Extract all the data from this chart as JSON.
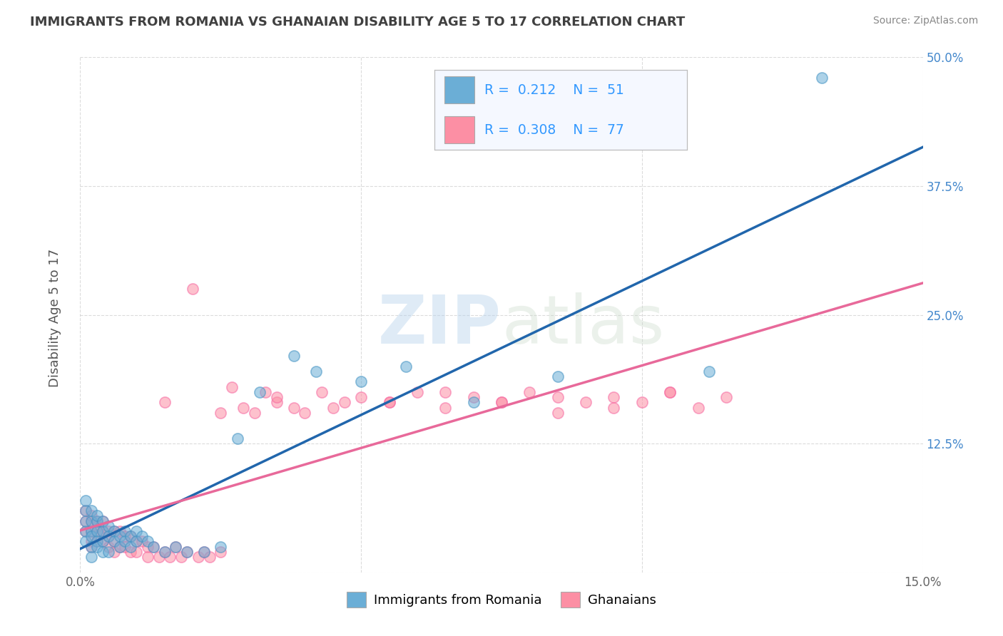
{
  "title": "IMMIGRANTS FROM ROMANIA VS GHANAIAN DISABILITY AGE 5 TO 17 CORRELATION CHART",
  "source": "Source: ZipAtlas.com",
  "ylabel": "Disability Age 5 to 17",
  "xlim": [
    0.0,
    0.15
  ],
  "ylim": [
    0.0,
    0.5
  ],
  "xticks": [
    0.0,
    0.05,
    0.1,
    0.15
  ],
  "xticklabels": [
    "0.0%",
    "",
    "",
    "15.0%"
  ],
  "yticks": [
    0.0,
    0.125,
    0.25,
    0.375,
    0.5
  ],
  "yticklabels": [
    "",
    "12.5%",
    "25.0%",
    "37.5%",
    "50.0%"
  ],
  "series1_color": "#6baed6",
  "series2_color": "#fc8fa4",
  "series1_edge": "#4393c3",
  "series2_edge": "#f768a1",
  "series1_label": "Immigrants from Romania",
  "series2_label": "Ghanaians",
  "series1_R": 0.212,
  "series1_N": 51,
  "series2_R": 0.308,
  "series2_N": 77,
  "trend1_color": "#2166ac",
  "trend2_color": "#e8699a",
  "legend_text_color": "#3399ff",
  "watermark": "ZIPatlas",
  "background_color": "#ffffff",
  "grid_color": "#cccccc",
  "title_color": "#404040",
  "series1_x": [
    0.001,
    0.001,
    0.001,
    0.001,
    0.001,
    0.002,
    0.002,
    0.002,
    0.002,
    0.002,
    0.002,
    0.003,
    0.003,
    0.003,
    0.003,
    0.003,
    0.004,
    0.004,
    0.004,
    0.004,
    0.005,
    0.005,
    0.005,
    0.006,
    0.006,
    0.007,
    0.007,
    0.008,
    0.008,
    0.009,
    0.009,
    0.01,
    0.01,
    0.011,
    0.012,
    0.013,
    0.015,
    0.017,
    0.019,
    0.022,
    0.025,
    0.028,
    0.032,
    0.038,
    0.042,
    0.05,
    0.058,
    0.07,
    0.085,
    0.112,
    0.132
  ],
  "series1_y": [
    0.04,
    0.05,
    0.06,
    0.07,
    0.03,
    0.04,
    0.05,
    0.035,
    0.025,
    0.015,
    0.06,
    0.04,
    0.05,
    0.055,
    0.03,
    0.025,
    0.04,
    0.05,
    0.03,
    0.02,
    0.045,
    0.035,
    0.02,
    0.04,
    0.03,
    0.035,
    0.025,
    0.04,
    0.03,
    0.035,
    0.025,
    0.04,
    0.03,
    0.035,
    0.03,
    0.025,
    0.02,
    0.025,
    0.02,
    0.02,
    0.025,
    0.13,
    0.175,
    0.21,
    0.195,
    0.185,
    0.2,
    0.165,
    0.19,
    0.195,
    0.48
  ],
  "series2_x": [
    0.001,
    0.001,
    0.001,
    0.002,
    0.002,
    0.002,
    0.002,
    0.002,
    0.003,
    0.003,
    0.003,
    0.003,
    0.004,
    0.004,
    0.004,
    0.005,
    0.005,
    0.005,
    0.006,
    0.006,
    0.006,
    0.007,
    0.007,
    0.008,
    0.008,
    0.009,
    0.009,
    0.01,
    0.01,
    0.011,
    0.012,
    0.012,
    0.013,
    0.014,
    0.015,
    0.016,
    0.017,
    0.018,
    0.019,
    0.02,
    0.021,
    0.022,
    0.023,
    0.025,
    0.027,
    0.029,
    0.031,
    0.033,
    0.035,
    0.038,
    0.04,
    0.043,
    0.047,
    0.05,
    0.055,
    0.06,
    0.065,
    0.07,
    0.075,
    0.08,
    0.085,
    0.09,
    0.095,
    0.1,
    0.105,
    0.11,
    0.115,
    0.105,
    0.095,
    0.085,
    0.075,
    0.065,
    0.055,
    0.045,
    0.035,
    0.025,
    0.015
  ],
  "series2_y": [
    0.04,
    0.05,
    0.06,
    0.04,
    0.05,
    0.055,
    0.03,
    0.025,
    0.045,
    0.04,
    0.05,
    0.03,
    0.04,
    0.05,
    0.03,
    0.04,
    0.035,
    0.025,
    0.04,
    0.03,
    0.02,
    0.04,
    0.025,
    0.035,
    0.025,
    0.035,
    0.02,
    0.03,
    0.02,
    0.03,
    0.025,
    0.015,
    0.025,
    0.015,
    0.02,
    0.015,
    0.025,
    0.015,
    0.02,
    0.275,
    0.015,
    0.02,
    0.015,
    0.02,
    0.18,
    0.16,
    0.155,
    0.175,
    0.165,
    0.16,
    0.155,
    0.175,
    0.165,
    0.17,
    0.165,
    0.175,
    0.16,
    0.17,
    0.165,
    0.175,
    0.155,
    0.165,
    0.17,
    0.165,
    0.175,
    0.16,
    0.17,
    0.175,
    0.16,
    0.17,
    0.165,
    0.175,
    0.165,
    0.16,
    0.17,
    0.155,
    0.165
  ]
}
